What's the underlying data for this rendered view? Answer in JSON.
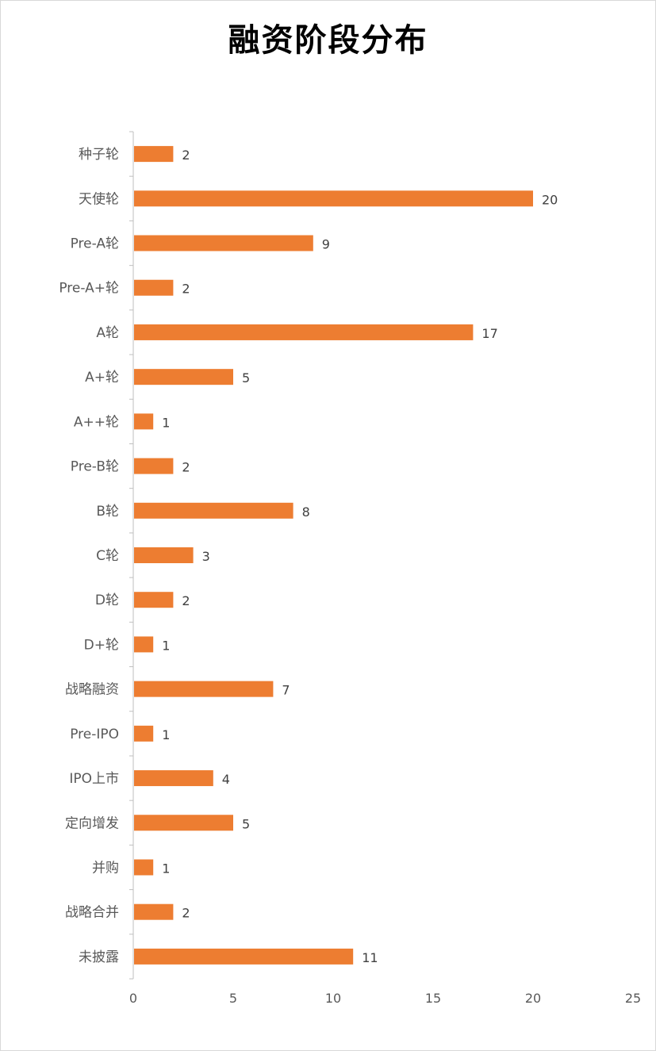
{
  "chart_data": {
    "type": "bar",
    "orientation": "horizontal",
    "title": "融资阶段分布",
    "categories": [
      "种子轮",
      "天使轮",
      "Pre-A轮",
      "Pre-A+轮",
      "A轮",
      "A+轮",
      "A++轮",
      "Pre-B轮",
      "B轮",
      "C轮",
      "D轮",
      "D+轮",
      "战略融资",
      "Pre-IPO",
      "IPO上市",
      "定向增发",
      "并购",
      "战略合并",
      "未披露"
    ],
    "values": [
      2,
      20,
      9,
      2,
      17,
      5,
      1,
      2,
      8,
      3,
      2,
      1,
      7,
      1,
      4,
      5,
      1,
      2,
      11
    ],
    "xlim": [
      0,
      25
    ],
    "xticks": [
      0,
      5,
      10,
      15,
      20,
      25
    ],
    "bar_color": "#ED7D31",
    "data_labels": true,
    "grid": false,
    "legend": "none"
  }
}
